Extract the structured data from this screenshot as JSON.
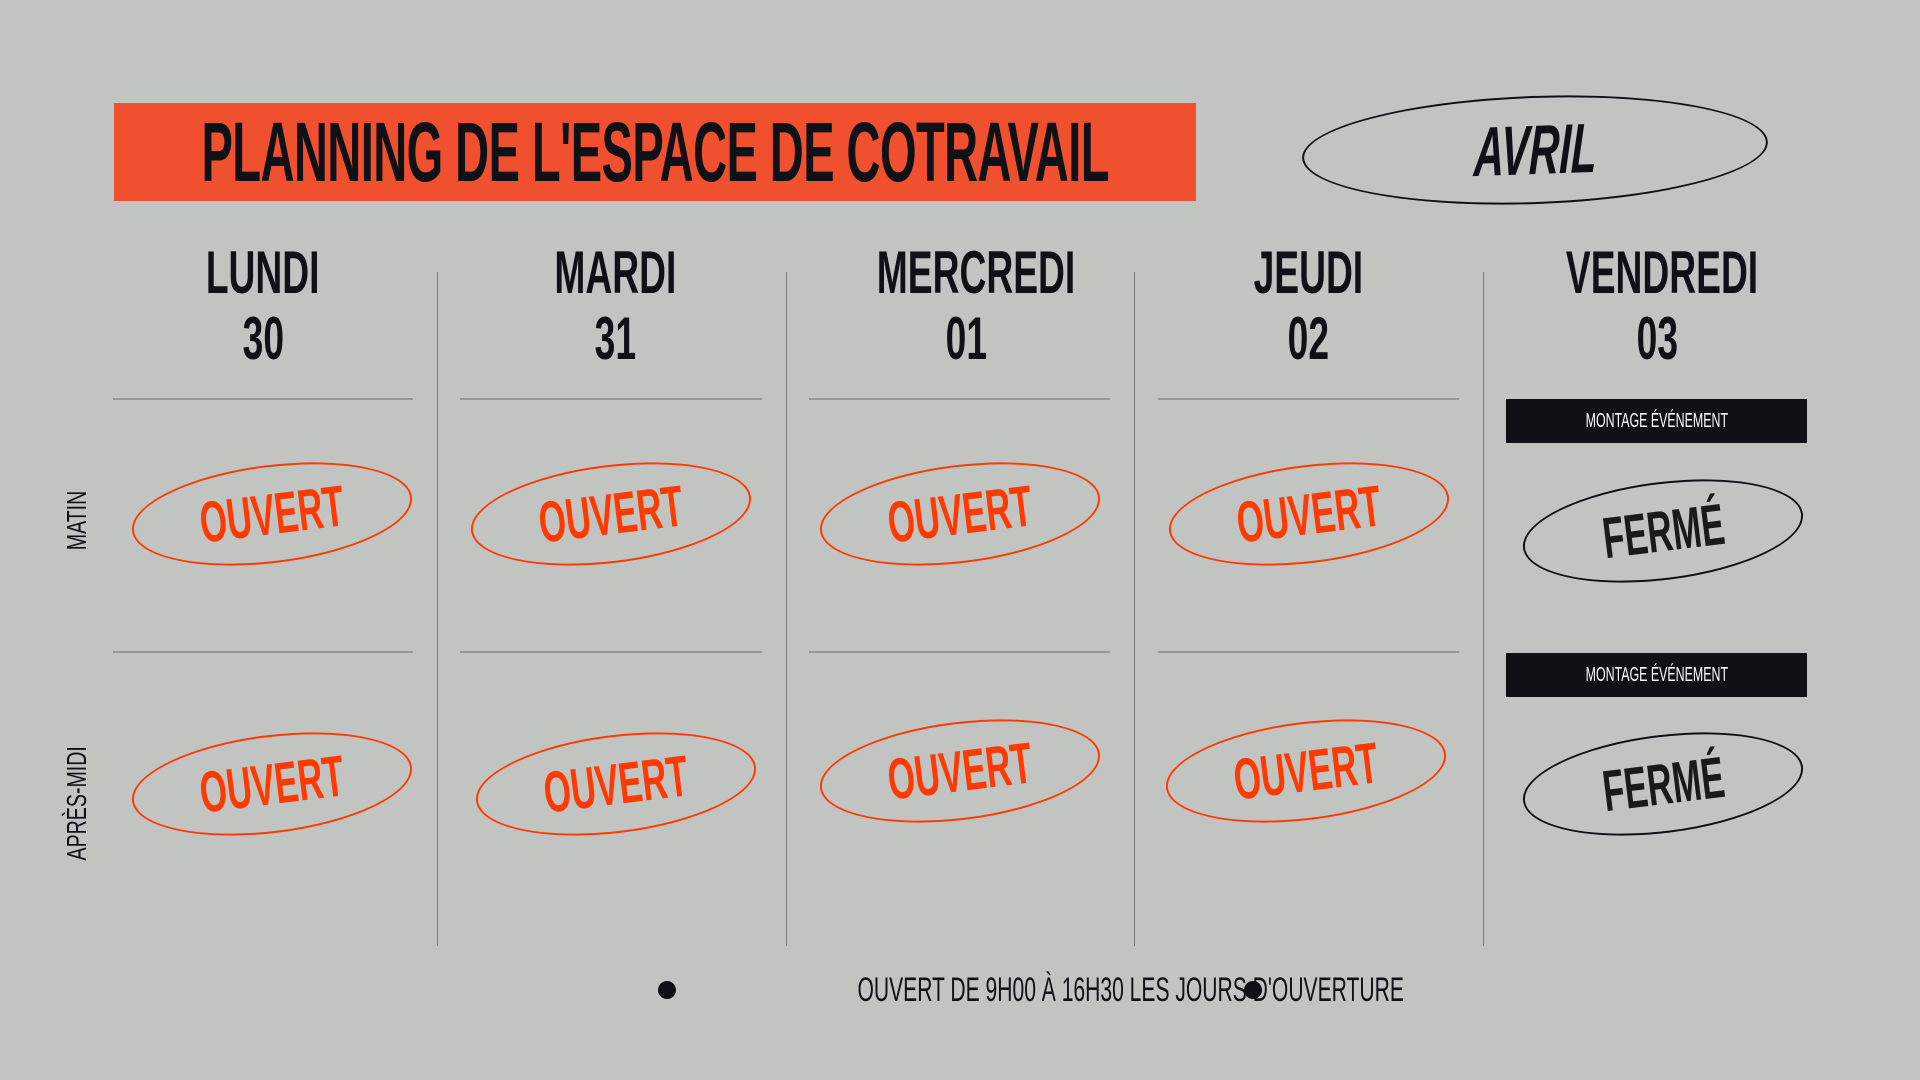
{
  "title": "PLANNING DE L'ESPACE DE COTRAVAIL",
  "month": "AVRIL",
  "row_labels": {
    "morning": "MATIN",
    "afternoon": "APRÈS-MIDI"
  },
  "days": [
    {
      "name": "LUNDI",
      "date": "30",
      "morning": {
        "status": "OUVERT"
      },
      "afternoon": {
        "status": "OUVERT"
      }
    },
    {
      "name": "MARDI",
      "date": "31",
      "morning": {
        "status": "OUVERT"
      },
      "afternoon": {
        "status": "OUVERT"
      }
    },
    {
      "name": "MERCREDI",
      "date": "01",
      "morning": {
        "status": "OUVERT"
      },
      "afternoon": {
        "status": "OUVERT"
      }
    },
    {
      "name": "JEUDI",
      "date": "02",
      "morning": {
        "status": "OUVERT"
      },
      "afternoon": {
        "status": "OUVERT"
      }
    },
    {
      "name": "VENDREDI",
      "date": "03",
      "morning": {
        "status": "FERMÉ",
        "note": "MONTAGE ÉVÉNEMENT"
      },
      "afternoon": {
        "status": "FERMÉ",
        "note": "MONTAGE ÉVÉNEMENT"
      }
    }
  ],
  "footer": "OUVERT DE 9H00 À 16H30 LES JOURS D'OUVERTURE",
  "colors": {
    "background": "#c2c4c2",
    "title_bg": "#f0502e",
    "open": "#ff3a00",
    "closed": "#0e1116"
  }
}
